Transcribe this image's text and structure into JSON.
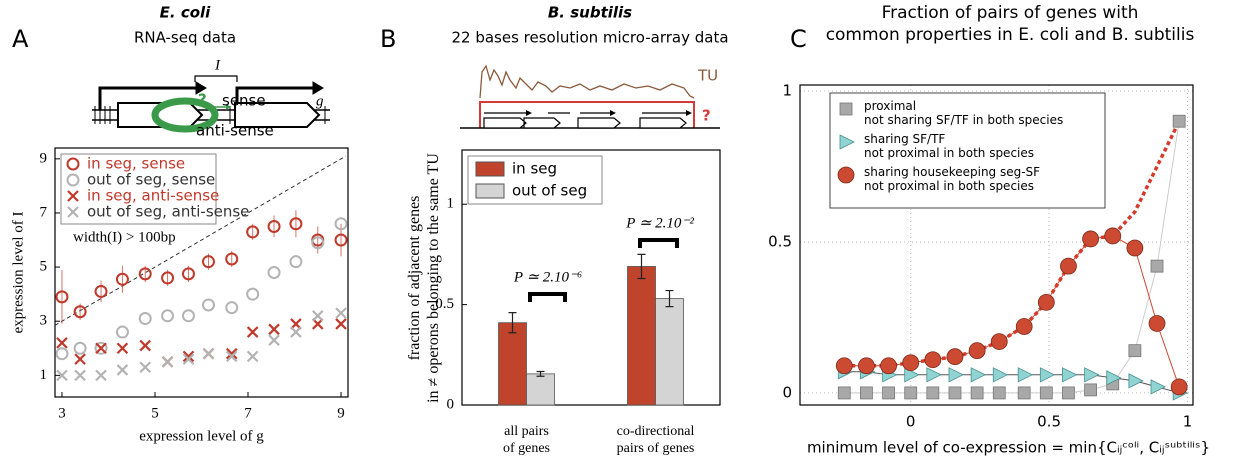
{
  "chart_data": [
    {
      "type": "scatter",
      "panel": "A",
      "title": "E. coli",
      "subtitle": "RNA-seq data",
      "xlabel": "expression level of g",
      "ylabel": "expression level of I",
      "annotation": "width(I) > 100bp",
      "diagram_labels": [
        "I",
        "?",
        "sense",
        "anti-sense",
        "g"
      ],
      "x": [
        3.0,
        3.39,
        3.84,
        4.3,
        4.79,
        5.27,
        5.72,
        6.15,
        6.65,
        7.1,
        7.56,
        8.03,
        8.5,
        9.0
      ],
      "series": [
        {
          "name": "in seg, sense",
          "color": "#c0392b",
          "marker": "circle",
          "values": [
            3.9,
            3.35,
            4.1,
            4.55,
            4.75,
            4.6,
            4.75,
            5.2,
            5.3,
            6.3,
            6.5,
            6.6,
            6.0,
            6.0
          ],
          "errors": [
            1.0,
            0.3,
            0.4,
            0.5,
            0.3,
            0.3,
            0.3,
            0.3,
            0.3,
            0.3,
            0.4,
            0.5,
            0.5,
            0.6
          ]
        },
        {
          "name": "out of seg, sense",
          "color": "#b3b3b3",
          "marker": "circle",
          "values": [
            1.8,
            2.0,
            2.0,
            2.6,
            3.1,
            3.2,
            3.2,
            3.6,
            3.5,
            4.0,
            4.8,
            5.2,
            5.9,
            6.6
          ]
        },
        {
          "name": "in seg, anti-sense",
          "color": "#c0392b",
          "marker": "x",
          "values": [
            2.2,
            1.6,
            2.0,
            2.0,
            2.1,
            1.5,
            1.7,
            1.8,
            1.8,
            2.6,
            2.7,
            2.9,
            2.9,
            2.9
          ]
        },
        {
          "name": "out of seg, anti-sense",
          "color": "#b3b3b3",
          "marker": "x",
          "values": [
            1.0,
            1.0,
            1.0,
            1.2,
            1.3,
            1.5,
            1.6,
            1.8,
            1.7,
            1.7,
            2.3,
            2.6,
            3.2,
            3.3
          ]
        }
      ],
      "reference_line": {
        "x": [
          2.85,
          9.1
        ],
        "y": [
          2.85,
          9.1
        ]
      },
      "xlim": [
        2.85,
        9.15
      ],
      "ylim": [
        0.2,
        9.4
      ],
      "xticks": [
        3,
        5,
        7,
        9
      ],
      "yticks": [
        1,
        3,
        5,
        7,
        9
      ],
      "legend": "upper left"
    },
    {
      "type": "bar",
      "panel": "B",
      "title": "B. subtilis",
      "subtitle": "22 bases resolution micro-array data",
      "ylabel": "fraction of adjacent genes\nin ≠ operons  belonging to the same TU",
      "diagram_labels": [
        "TU",
        "?"
      ],
      "annotations": [
        "P ≃ 2.10⁻⁶",
        "P ≃ 2.10⁻²"
      ],
      "categories": [
        "all pairs\nof genes",
        "co-directional\npairs of genes"
      ],
      "series": [
        {
          "name": "in seg",
          "color": "#c0432b",
          "values": [
            0.41,
            0.69
          ],
          "errors": [
            0.05,
            0.06
          ]
        },
        {
          "name": "out of seg",
          "color": "#d4d4d4",
          "values": [
            0.155,
            0.53
          ],
          "errors": [
            0.012,
            0.04
          ]
        }
      ],
      "ylim": [
        0,
        1.27
      ],
      "yticks": [
        0,
        0.5,
        1
      ],
      "legend": "upper left"
    },
    {
      "type": "line",
      "panel": "C",
      "title": "Fraction of  pairs of genes with\ncommon properties in E. coli and B. subtilis",
      "xlabel": "minimum level of co-expression = min{Cᵢⱼᶜᵒˡⁱ, Cᵢⱼˢᵘᵇᵗⁱˡⁱˢ}",
      "x": [
        -0.24,
        -0.16,
        -0.08,
        0.0,
        0.08,
        0.16,
        0.24,
        0.32,
        0.41,
        0.49,
        0.57,
        0.65,
        0.73,
        0.81,
        0.89,
        0.97
      ],
      "series": [
        {
          "name": "proximal\nnot sharing SF/TF in both species",
          "color": "#a8a8a8",
          "line_color": "#cccccc",
          "marker": "square",
          "values": [
            0,
            0,
            0,
            0,
            0,
            0,
            0,
            0,
            0,
            0,
            0,
            0.01,
            0.03,
            0.14,
            0.42,
            0.9
          ]
        },
        {
          "name": "sharing SF/TF\nnot proximal in both species",
          "color": "#8fd3d3",
          "line_color": "#555555",
          "marker": "triangle",
          "values": [
            0.07,
            0.07,
            0.06,
            0.06,
            0.06,
            0.06,
            0.06,
            0.06,
            0.06,
            0.06,
            0.06,
            0.06,
            0.05,
            0.04,
            0.02,
            0.0
          ]
        },
        {
          "name": "sharing housekeeping seg-SF\nnot proximal in both species",
          "color": "#cc4a32",
          "line_color": "#cc4a32",
          "marker": "filled-circle",
          "values": [
            0.09,
            0.09,
            0.09,
            0.1,
            0.11,
            0.12,
            0.14,
            0.17,
            0.22,
            0.3,
            0.42,
            0.51,
            0.52,
            0.48,
            0.23,
            0.02
          ]
        },
        {
          "color": "#d63a2a",
          "line_color": "#d63a2a",
          "marker": "none",
          "dashed": true,
          "values": [
            0.09,
            0.09,
            0.09,
            0.1,
            0.11,
            0.12,
            0.14,
            0.17,
            0.22,
            0.3,
            0.42,
            0.51,
            0.52,
            0.6,
            0.75,
            0.9
          ]
        }
      ],
      "xlim": [
        -0.4,
        1.02
      ],
      "ylim": [
        -0.04,
        1.02
      ],
      "xticks": [
        0,
        0.5,
        1
      ],
      "yticks": [
        0,
        0.5,
        1
      ],
      "grid": true,
      "legend": "upper left"
    }
  ]
}
